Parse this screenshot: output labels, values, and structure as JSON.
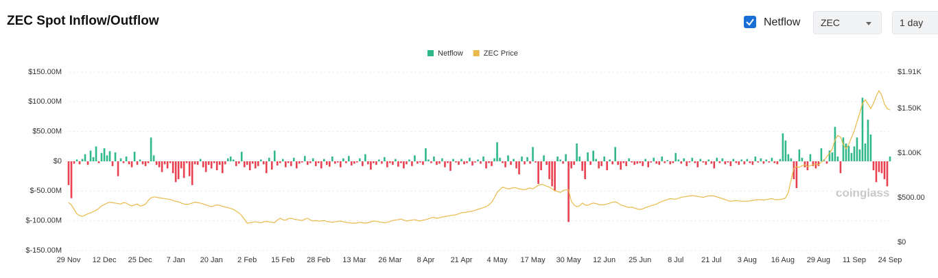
{
  "header": {
    "title": "ZEC Spot Inflow/Outflow",
    "checkbox_label": "Netflow",
    "coin_select": "ZEC",
    "interval_select": "1 day"
  },
  "watermark": "coinglass",
  "chart_data": {
    "type": "bar_line",
    "categories": [
      "29 Nov",
      null,
      null,
      null,
      null,
      null,
      null,
      null,
      null,
      null,
      null,
      null,
      null,
      "12 Dec",
      null,
      null,
      null,
      null,
      null,
      null,
      null,
      null,
      null,
      null,
      null,
      null,
      "25 Dec",
      null,
      null,
      null,
      null,
      null,
      null,
      null,
      null,
      null,
      null,
      null,
      null,
      "7 Jan",
      null,
      null,
      null,
      null,
      null,
      null,
      null,
      null,
      null,
      null,
      null,
      null,
      "20 Jan",
      null,
      null,
      null,
      null,
      null,
      null,
      null,
      null,
      null,
      null,
      null,
      null,
      "2 Feb",
      null,
      null,
      null,
      null,
      null,
      null,
      null,
      null,
      null,
      null,
      null,
      null,
      "15 Feb",
      null,
      null,
      null,
      null,
      null,
      null,
      null,
      null,
      null,
      null,
      null,
      null,
      "28 Feb",
      null,
      null,
      null,
      null,
      null,
      null,
      null,
      null,
      null,
      null,
      null,
      null,
      "13 Mar",
      null,
      null,
      null,
      null,
      null,
      null,
      null,
      null,
      null,
      null,
      null,
      null,
      "26 Mar",
      null,
      null,
      null,
      null,
      null,
      null,
      null,
      null,
      null,
      null,
      null,
      null,
      "8 Apr",
      null,
      null,
      null,
      null,
      null,
      null,
      null,
      null,
      null,
      null,
      null,
      null,
      "21 Apr",
      null,
      null,
      null,
      null,
      null,
      null,
      null,
      null,
      null,
      null,
      null,
      null,
      "4 May",
      null,
      null,
      null,
      null,
      null,
      null,
      null,
      null,
      null,
      null,
      null,
      null,
      "17 May",
      null,
      null,
      null,
      null,
      null,
      null,
      null,
      null,
      null,
      null,
      null,
      null,
      "30 May",
      null,
      null,
      null,
      null,
      null,
      null,
      null,
      null,
      null,
      null,
      null,
      null,
      "12 Jun",
      null,
      null,
      null,
      null,
      null,
      null,
      null,
      null,
      null,
      null,
      null,
      null,
      "25 Jun",
      null,
      null,
      null,
      null,
      null,
      null,
      null,
      null,
      null,
      null,
      null,
      null,
      "8 Jul",
      null,
      null,
      null,
      null,
      null,
      null,
      null,
      null,
      null,
      null,
      null,
      null,
      "21 Jul",
      null,
      null,
      null,
      null,
      null,
      null,
      null,
      null,
      null,
      null,
      null,
      null,
      "3 Aug",
      null,
      null,
      null,
      null,
      null,
      null,
      null,
      null,
      null,
      null,
      null,
      null,
      "16 Aug",
      null,
      null,
      null,
      null,
      null,
      null,
      null,
      null,
      null,
      null,
      null,
      null,
      "29 Aug",
      null,
      null,
      null,
      null,
      null,
      null,
      null,
      null,
      null,
      null,
      null,
      null,
      "11 Sep",
      null,
      null,
      null,
      null,
      null,
      null,
      null,
      null,
      null,
      null,
      null,
      null,
      "24 Sep"
    ],
    "series": [
      {
        "name": "Netflow",
        "type": "bar",
        "color": "#2fb88a",
        "negative_color": "#e9404f",
        "values": [
          -40,
          -62,
          -4,
          3,
          -5,
          4,
          12,
          -6,
          18,
          7,
          25,
          -3,
          14,
          22,
          10,
          17,
          -8,
          15,
          -25,
          5,
          -3,
          8,
          -5,
          -10,
          16,
          -6,
          3,
          -5,
          -8,
          -3,
          40,
          10,
          -6,
          -10,
          -18,
          -5,
          -12,
          -3,
          -20,
          -35,
          -30,
          -12,
          -28,
          -3,
          -25,
          -40,
          -5,
          -6,
          4,
          -10,
          -18,
          -6,
          -12,
          -3,
          -15,
          -6,
          -20,
          -5,
          5,
          8,
          3,
          -8,
          -4,
          16,
          -10,
          -6,
          -15,
          -4,
          -12,
          -8,
          3,
          -5,
          -20,
          6,
          -14,
          18,
          -7,
          -3,
          4,
          -10,
          -3,
          -8,
          6,
          -12,
          -4,
          -2,
          9,
          -6,
          -3,
          5,
          -8,
          -3,
          -12,
          4,
          -6,
          -9,
          8,
          -4,
          -2,
          -10,
          5,
          -3,
          9,
          -7,
          -4,
          -2,
          5,
          -8,
          12,
          -5,
          -14,
          -3,
          -6,
          3,
          -4,
          7,
          -10,
          -3,
          -6,
          4,
          -9,
          -3,
          -12,
          -5,
          3,
          -8,
          10,
          -4,
          -2,
          -6,
          22,
          3,
          -3,
          8,
          -6,
          -4,
          5,
          -10,
          -3,
          -16,
          4,
          -2,
          -6,
          4,
          -5,
          -3,
          6,
          -7,
          -2,
          3,
          -4,
          8,
          -12,
          -3,
          -8,
          5,
          32,
          6,
          -3,
          -10,
          10,
          -6,
          4,
          -12,
          -22,
          8,
          -5,
          7,
          -4,
          24,
          -2,
          -38,
          -15,
          10,
          -6,
          -30,
          -42,
          -50,
          8,
          3,
          -4,
          12,
          -102,
          -12,
          -6,
          30,
          8,
          -16,
          -30,
          15,
          -6,
          18,
          4,
          -12,
          -8,
          8,
          -15,
          3,
          -5,
          24,
          -6,
          -14,
          -3,
          -8,
          5,
          -2,
          -6,
          -4,
          -3,
          -8,
          4,
          -10,
          -2,
          6,
          -4,
          -6,
          8,
          -3,
          2,
          -5,
          -3,
          14,
          3,
          -4,
          5,
          -8,
          -2,
          6,
          -3,
          -10,
          4,
          -2,
          -6,
          3,
          -4,
          -12,
          6,
          -3,
          5,
          -5,
          -2,
          -8,
          4,
          -3,
          -6,
          3,
          -5,
          4,
          -3,
          -6,
          8,
          -2,
          5,
          -4,
          3,
          -2,
          6,
          -3,
          -5,
          4,
          47,
          35,
          12,
          5,
          -30,
          -45,
          20,
          6,
          -10,
          -15,
          12,
          -8,
          -12,
          -8,
          22,
          3,
          -4,
          18,
          15,
          58,
          8,
          -20,
          40,
          30,
          26,
          14,
          25,
          40,
          20,
          107,
          30,
          70,
          45,
          -15,
          -35,
          -18,
          -20,
          -30,
          -42,
          8
        ]
      },
      {
        "name": "ZEC Price",
        "type": "line",
        "axis": "y2",
        "color": "#e9b949",
        "values": [
          446,
          420,
          370,
          320,
          300,
          292,
          305,
          320,
          330,
          345,
          360,
          380,
          410,
          423,
          440,
          450,
          446,
          440,
          435,
          430,
          445,
          440,
          420,
          410,
          420,
          430,
          408,
          415,
          430,
          470,
          500,
          510,
          505,
          500,
          495,
          490,
          485,
          480,
          470,
          460,
          455,
          440,
          430,
          425,
          430,
          440,
          450,
          445,
          440,
          430,
          420,
          410,
          400,
          410,
          420,
          415,
          405,
          395,
          390,
          380,
          370,
          350,
          330,
          300,
          260,
          215,
          220,
          225,
          230,
          225,
          220,
          230,
          235,
          230,
          225,
          220,
          250,
          270,
          254,
          250,
          265,
          270,
          260,
          255,
          250,
          245,
          260,
          270,
          250,
          240,
          245,
          238,
          240,
          245,
          235,
          230,
          225,
          230,
          235,
          240,
          230,
          225,
          220,
          215,
          215,
          218,
          225,
          220,
          215,
          220,
          230,
          240,
          235,
          230,
          225,
          220,
          225,
          235,
          245,
          250,
          255,
          260,
          250,
          240,
          245,
          250,
          255,
          245,
          240,
          250,
          254,
          265,
          275,
          280,
          270,
          275,
          285,
          290,
          295,
          300,
          305,
          310,
          320,
          331,
          335,
          340,
          345,
          350,
          360,
          370,
          380,
          390,
          400,
          420,
          450,
          500,
          561,
          590,
          620,
          610,
          600,
          605,
          615,
          610,
          600,
          595,
          590,
          600,
          610,
          600,
          620,
          640,
          650,
          645,
          630,
          620,
          600,
          580,
          570,
          560,
          580,
          590,
          590,
          460,
          420,
          400,
          410,
          440,
          420,
          415,
          430,
          440,
          435,
          425,
          420,
          423,
          430,
          440,
          450,
          455,
          440,
          420,
          410,
          400,
          390,
          395,
          385,
          375,
          369,
          375,
          390,
          400,
          410,
          420,
          430,
          445,
          460,
          470,
          480,
          490,
          485,
          485,
          495,
          505,
          510,
          515,
          520,
          525,
          520,
          515,
          510,
          505,
          515,
          520,
          523,
          520,
          510,
          500,
          490,
          480,
          470,
          460,
          465,
          470,
          465,
          460,
          462,
          461,
          465,
          470,
          475,
          480,
          478,
          475,
          480,
          485,
          490,
          480,
          478,
          482,
          485,
          500,
          560,
          700,
          830,
          850,
          840,
          860,
          870,
          850,
          860,
          870,
          880,
          870,
          900,
          920,
          960,
          1000,
          1050,
          1150,
          1200,
          1180,
          1100,
          1050,
          1100,
          1177,
          1250,
          1350,
          1450,
          1560,
          1600,
          1550,
          1500,
          1560,
          1640,
          1700,
          1650,
          1550,
          1500,
          1485
        ]
      }
    ],
    "ylim": [
      -150,
      150
    ],
    "yticks": [
      {
        "value": -150,
        "label": "$-150.00M"
      },
      {
        "value": -100,
        "label": "$-100.00M"
      },
      {
        "value": -50,
        "label": "$-50.00M"
      },
      {
        "value": 0,
        "label": "$0"
      },
      {
        "value": 50,
        "label": "$50.00M"
      },
      {
        "value": 100,
        "label": "$100.00M"
      },
      {
        "value": 150,
        "label": "$150.00M"
      }
    ],
    "y2lim": [
      -92,
      1910
    ],
    "y2ticks": [
      {
        "value": 0,
        "label": "$0"
      },
      {
        "value": 500,
        "label": "$500.00"
      },
      {
        "value": 1000,
        "label": "$1.00K"
      },
      {
        "value": 1500,
        "label": "$1.50K"
      },
      {
        "value": 1910,
        "label": "$1.91K"
      }
    ],
    "grid": true,
    "legend": "top"
  }
}
